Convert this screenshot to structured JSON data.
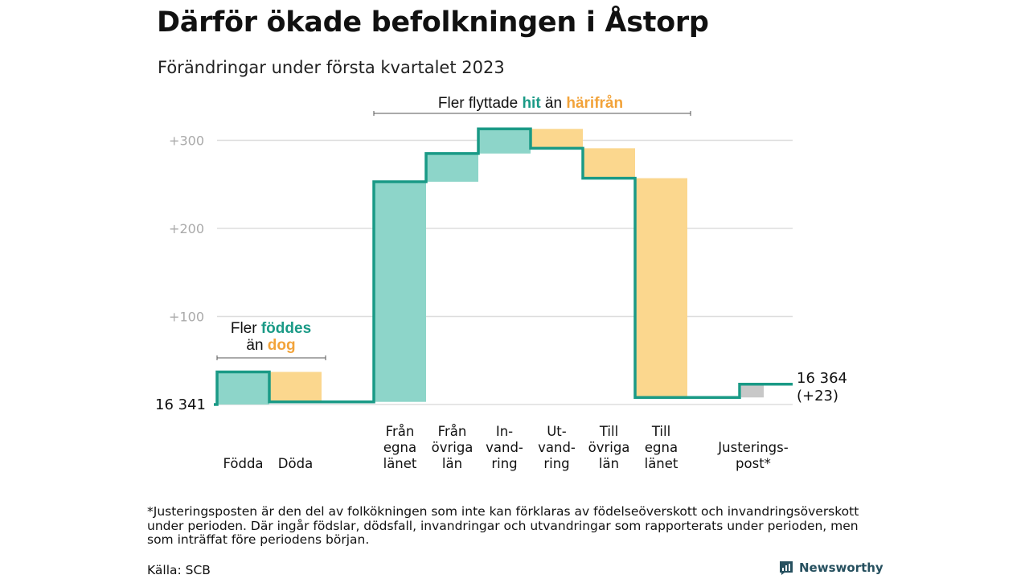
{
  "title": "Därför ökade befolkningen i Åstorp",
  "subtitle": "Förändringar under första kvartalet 2023",
  "colors": {
    "increase": "#8dd5c9",
    "decrease": "#fbd78e",
    "adjustment": "#c8c8c8",
    "step_line": "#1a9a86",
    "hit_text": "#1a9a86",
    "harifran_text": "#f2a33a",
    "grid": "#dddddd"
  },
  "chart_data": {
    "type": "bar",
    "subtype": "waterfall",
    "start_value": 16341,
    "start_label": "16 341",
    "end_label_lines": [
      "16 364",
      "(+23)"
    ],
    "ylim": [
      -5,
      310
    ],
    "yticks": [
      {
        "value": 100,
        "label": "+100"
      },
      {
        "value": 200,
        "label": "+200"
      },
      {
        "value": 300,
        "label": "+300"
      }
    ],
    "grid": true,
    "steps": [
      {
        "label_lines": [
          "Födda"
        ],
        "delta": 37,
        "kind": "increase"
      },
      {
        "label_lines": [
          "Döda"
        ],
        "delta": -34,
        "kind": "decrease"
      },
      {
        "label_lines": [],
        "delta": 0,
        "kind": "spacer"
      },
      {
        "label_lines": [
          "Från",
          "egna",
          "länet"
        ],
        "delta": 250,
        "kind": "increase"
      },
      {
        "label_lines": [
          "Från",
          "övriga",
          "län"
        ],
        "delta": 32,
        "kind": "increase"
      },
      {
        "label_lines": [
          "In-",
          "vand-",
          "ring"
        ],
        "delta": 28,
        "kind": "increase"
      },
      {
        "label_lines": [
          "Ut-",
          "vand-",
          "ring"
        ],
        "delta": -22,
        "kind": "decrease"
      },
      {
        "label_lines": [
          "Till",
          "övriga",
          "län"
        ],
        "delta": -34,
        "kind": "decrease"
      },
      {
        "label_lines": [
          "Till",
          "egna",
          "länet"
        ],
        "delta": -249,
        "kind": "decrease"
      },
      {
        "label_lines": [],
        "delta": 0,
        "kind": "spacer"
      },
      {
        "label_lines": [
          "Justerings-",
          "post*"
        ],
        "delta": 15,
        "kind": "adjustment"
      }
    ],
    "annotations": [
      {
        "group": "births",
        "lines": [
          [
            {
              "text": "Fler ",
              "style": "plain"
            },
            {
              "text": "föddes",
              "style": "increase"
            }
          ],
          [
            {
              "text": "än ",
              "style": "plain"
            },
            {
              "text": "dog",
              "style": "decrease"
            }
          ]
        ]
      },
      {
        "group": "migration",
        "lines": [
          [
            {
              "text": "Fler flyttade ",
              "style": "plain"
            },
            {
              "text": "hit",
              "style": "increase"
            },
            {
              "text": " än ",
              "style": "plain"
            },
            {
              "text": "härifrån",
              "style": "decrease"
            }
          ]
        ]
      }
    ]
  },
  "footnote": "*Justeringsposten är den del av folkökningen som inte kan förklaras av födelseöverskott och invandringsöverskott under perioden. Där ingår födslar, dödsfall, invandringar och utvandringar som rapporterats under perioden, men som inträffat före periodens början.",
  "source": "Källa: SCB",
  "brand": {
    "name": "Newsworthy",
    "icon": "newsworthy-logo-icon"
  }
}
